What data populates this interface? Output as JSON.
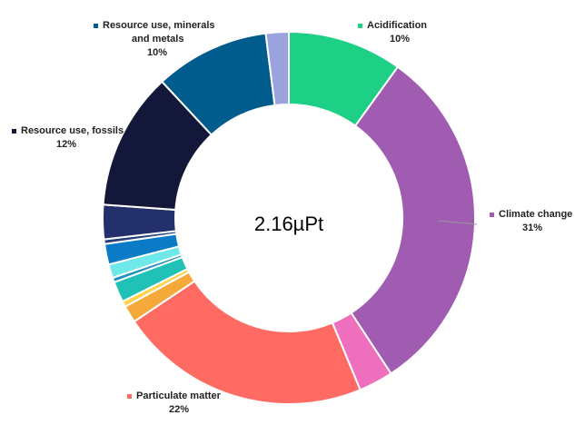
{
  "chart_data": {
    "type": "donut",
    "center_label": "2.16µPt",
    "slices": [
      {
        "name": "Acidification",
        "value": 10,
        "color": "#1ecf86",
        "label": "Acidification",
        "pct": "10%"
      },
      {
        "name": "Climate change",
        "value": 31,
        "color": "#a05cb0",
        "label": "Climate change",
        "pct": "31%"
      },
      {
        "name": "",
        "value": 3,
        "color": "#ee6fbd"
      },
      {
        "name": "Particulate matter",
        "value": 22,
        "color": "#ff6b63",
        "label": "Particulate matter",
        "pct": "22%"
      },
      {
        "name": "",
        "value": 1.5,
        "color": "#f5a93a"
      },
      {
        "name": "",
        "value": 0.5,
        "color": "#ffd24a"
      },
      {
        "name": "",
        "value": 1.8,
        "color": "#20c1b7"
      },
      {
        "name": "",
        "value": 0.4,
        "color": "#1f8fbd"
      },
      {
        "name": "",
        "value": 1.2,
        "color": "#6ee8e8"
      },
      {
        "name": "",
        "value": 1.8,
        "color": "#0b7bc8"
      },
      {
        "name": "",
        "value": 0.4,
        "color": "#2a3f7c"
      },
      {
        "name": "",
        "value": 3,
        "color": "#24306b"
      },
      {
        "name": "Resource use, fossils",
        "value": 12,
        "color": "#13183a",
        "label": "Resource use, fossils",
        "pct": "12%"
      },
      {
        "name": "Resource use, minerals and metals",
        "value": 10,
        "color": "#005c8c",
        "label": "Resource use, minerals\nand metals",
        "pct": "10%"
      },
      {
        "name": "",
        "value": 2,
        "color": "#9aa3de"
      }
    ]
  }
}
